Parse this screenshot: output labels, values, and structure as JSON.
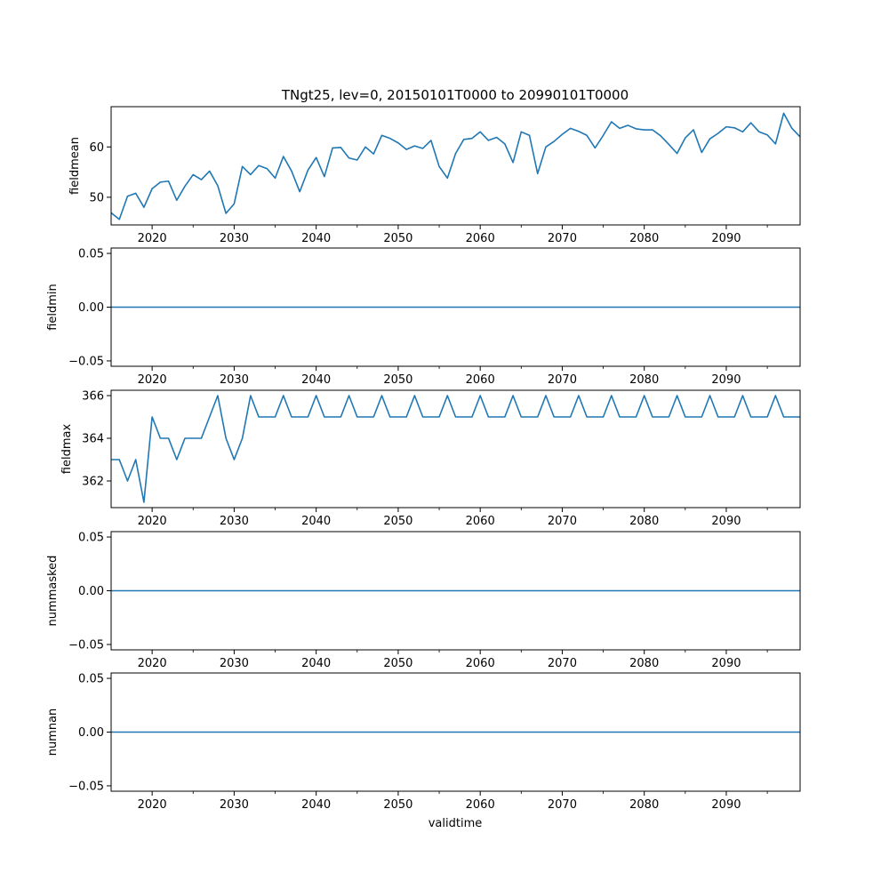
{
  "title": "TNgt25, lev=0, 20150101T0000 to 20990101T0000",
  "xlabel": "validtime",
  "line_color": "#1f77b4",
  "chart_data": [
    {
      "type": "line",
      "ylabel": "fieldmean",
      "x": [
        2015,
        2016,
        2017,
        2018,
        2019,
        2020,
        2021,
        2022,
        2023,
        2024,
        2025,
        2026,
        2027,
        2028,
        2029,
        2030,
        2031,
        2032,
        2033,
        2034,
        2035,
        2036,
        2037,
        2038,
        2039,
        2040,
        2041,
        2042,
        2043,
        2044,
        2045,
        2046,
        2047,
        2048,
        2049,
        2050,
        2051,
        2052,
        2053,
        2054,
        2055,
        2056,
        2057,
        2058,
        2059,
        2060,
        2061,
        2062,
        2063,
        2064,
        2065,
        2066,
        2067,
        2068,
        2069,
        2070,
        2071,
        2072,
        2073,
        2074,
        2075,
        2076,
        2077,
        2078,
        2079,
        2080,
        2081,
        2082,
        2083,
        2084,
        2085,
        2086,
        2087,
        2088,
        2089,
        2090,
        2091,
        2092,
        2093,
        2094,
        2095,
        2096,
        2097,
        2098,
        2099
      ],
      "y": [
        46.9,
        45.6,
        50.2,
        50.8,
        48.0,
        51.7,
        53.0,
        53.2,
        49.4,
        52.2,
        54.5,
        53.5,
        55.2,
        52.3,
        46.8,
        48.7,
        56.1,
        54.5,
        56.3,
        55.7,
        53.8,
        58.1,
        55.2,
        51.1,
        55.4,
        57.9,
        54.1,
        59.8,
        59.9,
        57.8,
        57.4,
        60.0,
        58.6,
        62.3,
        61.7,
        60.8,
        59.5,
        60.2,
        59.7,
        61.3,
        56.1,
        53.8,
        58.7,
        61.5,
        61.7,
        63.0,
        61.3,
        61.9,
        60.6,
        56.9,
        63.0,
        62.3,
        54.7,
        60.0,
        61.1,
        62.5,
        63.7,
        63.1,
        62.3,
        59.8,
        62.3,
        65.0,
        63.7,
        64.3,
        63.6,
        63.4,
        63.4,
        62.2,
        60.5,
        58.7,
        61.8,
        63.4,
        58.9,
        61.6,
        62.7,
        64.0,
        63.8,
        63.0,
        64.8,
        63.0,
        62.4,
        60.6,
        66.7,
        63.7,
        62.0
      ],
      "ylim": [
        44.5,
        68
      ],
      "yticks": [
        50,
        60
      ],
      "ytick_labels": [
        "50",
        "60"
      ],
      "xlim": [
        2015,
        2099
      ],
      "xticks": [
        2020,
        2030,
        2040,
        2050,
        2060,
        2070,
        2080,
        2090
      ],
      "xtick_labels": [
        "2020",
        "2030",
        "2040",
        "2050",
        "2060",
        "2070",
        "2080",
        "2090"
      ]
    },
    {
      "type": "line",
      "ylabel": "fieldmin",
      "x": [
        2015,
        2099
      ],
      "y": [
        0,
        0
      ],
      "ylim": [
        -0.055,
        0.055
      ],
      "yticks": [
        -0.05,
        0.0,
        0.05
      ],
      "ytick_labels": [
        "−0.05",
        "0.00",
        "0.05"
      ],
      "xlim": [
        2015,
        2099
      ],
      "xticks": [
        2020,
        2030,
        2040,
        2050,
        2060,
        2070,
        2080,
        2090
      ],
      "xtick_labels": [
        "2020",
        "2030",
        "2040",
        "2050",
        "2060",
        "2070",
        "2080",
        "2090"
      ]
    },
    {
      "type": "line",
      "ylabel": "fieldmax",
      "x": [
        2015,
        2016,
        2017,
        2018,
        2019,
        2020,
        2021,
        2022,
        2023,
        2024,
        2025,
        2026,
        2027,
        2028,
        2029,
        2030,
        2031,
        2032,
        2033,
        2034,
        2035,
        2036,
        2037,
        2038,
        2039,
        2040,
        2041,
        2042,
        2043,
        2044,
        2045,
        2046,
        2047,
        2048,
        2049,
        2050,
        2051,
        2052,
        2053,
        2054,
        2055,
        2056,
        2057,
        2058,
        2059,
        2060,
        2061,
        2062,
        2063,
        2064,
        2065,
        2066,
        2067,
        2068,
        2069,
        2070,
        2071,
        2072,
        2073,
        2074,
        2075,
        2076,
        2077,
        2078,
        2079,
        2080,
        2081,
        2082,
        2083,
        2084,
        2085,
        2086,
        2087,
        2088,
        2089,
        2090,
        2091,
        2092,
        2093,
        2094,
        2095,
        2096,
        2097,
        2098,
        2099
      ],
      "y": [
        363,
        363,
        362,
        363,
        361,
        365,
        364,
        364,
        363,
        364,
        364,
        364,
        365,
        366,
        364,
        363,
        364,
        366,
        365,
        365,
        365,
        366,
        365,
        365,
        365,
        366,
        365,
        365,
        365,
        366,
        365,
        365,
        365,
        366,
        365,
        365,
        365,
        366,
        365,
        365,
        365,
        366,
        365,
        365,
        365,
        366,
        365,
        365,
        365,
        366,
        365,
        365,
        365,
        366,
        365,
        365,
        365,
        366,
        365,
        365,
        365,
        366,
        365,
        365,
        365,
        366,
        365,
        365,
        365,
        366,
        365,
        365,
        365,
        366,
        365,
        365,
        365,
        366,
        365,
        365,
        365,
        366,
        365,
        365,
        365
      ],
      "ylim": [
        360.75,
        366.25
      ],
      "yticks": [
        362,
        364,
        366
      ],
      "ytick_labels": [
        "362",
        "364",
        "366"
      ],
      "xlim": [
        2015,
        2099
      ],
      "xticks": [
        2020,
        2030,
        2040,
        2050,
        2060,
        2070,
        2080,
        2090
      ],
      "xtick_labels": [
        "2020",
        "2030",
        "2040",
        "2050",
        "2060",
        "2070",
        "2080",
        "2090"
      ]
    },
    {
      "type": "line",
      "ylabel": "nummasked",
      "x": [
        2015,
        2099
      ],
      "y": [
        0,
        0
      ],
      "ylim": [
        -0.055,
        0.055
      ],
      "yticks": [
        -0.05,
        0.0,
        0.05
      ],
      "ytick_labels": [
        "−0.05",
        "0.00",
        "0.05"
      ],
      "xlim": [
        2015,
        2099
      ],
      "xticks": [
        2020,
        2030,
        2040,
        2050,
        2060,
        2070,
        2080,
        2090
      ],
      "xtick_labels": [
        "2020",
        "2030",
        "2040",
        "2050",
        "2060",
        "2070",
        "2080",
        "2090"
      ]
    },
    {
      "type": "line",
      "ylabel": "numnan",
      "x": [
        2015,
        2099
      ],
      "y": [
        0,
        0
      ],
      "ylim": [
        -0.055,
        0.055
      ],
      "yticks": [
        -0.05,
        0.0,
        0.05
      ],
      "ytick_labels": [
        "−0.05",
        "0.00",
        "0.05"
      ],
      "xlim": [
        2015,
        2099
      ],
      "xticks": [
        2020,
        2030,
        2040,
        2050,
        2060,
        2070,
        2080,
        2090
      ],
      "xtick_labels": [
        "2020",
        "2030",
        "2040",
        "2050",
        "2060",
        "2070",
        "2080",
        "2090"
      ]
    }
  ]
}
